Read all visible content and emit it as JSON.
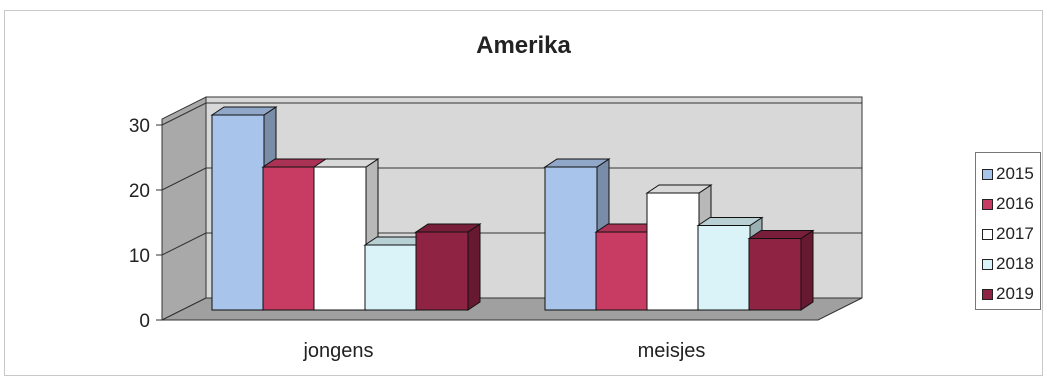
{
  "chart_data": {
    "type": "bar",
    "title": "Amerika",
    "categories": [
      "jongens",
      "meisjes"
    ],
    "series": [
      {
        "name": "2015",
        "values": [
          30,
          22
        ],
        "color": "#a9c4ea"
      },
      {
        "name": "2016",
        "values": [
          22,
          12
        ],
        "color": "#c83b63"
      },
      {
        "name": "2017",
        "values": [
          22,
          18
        ],
        "color": "#ffffff"
      },
      {
        "name": "2018",
        "values": [
          10,
          13
        ],
        "color": "#d9f3f9"
      },
      {
        "name": "2019",
        "values": [
          12,
          11
        ],
        "color": "#8e2344"
      }
    ],
    "yticks": [
      0,
      10,
      20,
      30
    ],
    "ylim": [
      0,
      30
    ],
    "grid": true,
    "legend": "right",
    "style": "3d-clustered-column"
  }
}
